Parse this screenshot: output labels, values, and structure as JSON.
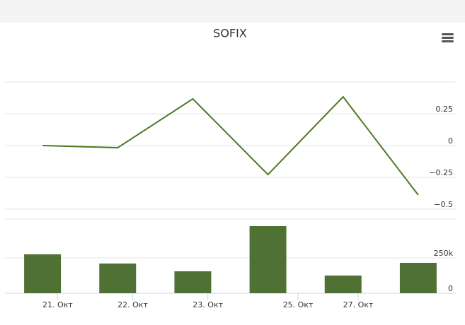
{
  "chart_data": {
    "type": "line",
    "title": "SOFIX",
    "x": [
      0,
      1,
      2,
      3,
      4,
      5
    ],
    "xlim": [
      -0.5,
      5.5
    ],
    "xticks": [
      {
        "value": 0.2,
        "label": "21. Окт"
      },
      {
        "value": 1.2,
        "label": "22. Окт"
      },
      {
        "value": 2.2,
        "label": "23. Окт"
      },
      {
        "value": 3.4,
        "label": "25. Окт"
      },
      {
        "value": 4.2,
        "label": "27. Окт"
      }
    ],
    "series": [
      {
        "type": "line",
        "color": "#4d7a23",
        "values": [
          0.0,
          -0.017,
          0.367,
          -0.228,
          0.383,
          -0.389
        ],
        "ylim": [
          -0.5,
          0.5
        ],
        "yticks": [
          {
            "value": 0.25,
            "label": "0.25"
          },
          0,
          {
            "value": -0.25,
            "label": "−0.25"
          },
          {
            "value": -0.5,
            "label": "−0.5"
          }
        ]
      },
      {
        "type": "bar",
        "color": "#4f7133",
        "values": [
          275000,
          210000,
          155000,
          475000,
          125000,
          215000
        ],
        "ylim": [
          0,
          525000
        ],
        "yticks": [
          {
            "value": 250000,
            "label": "250k"
          },
          0
        ]
      }
    ]
  }
}
